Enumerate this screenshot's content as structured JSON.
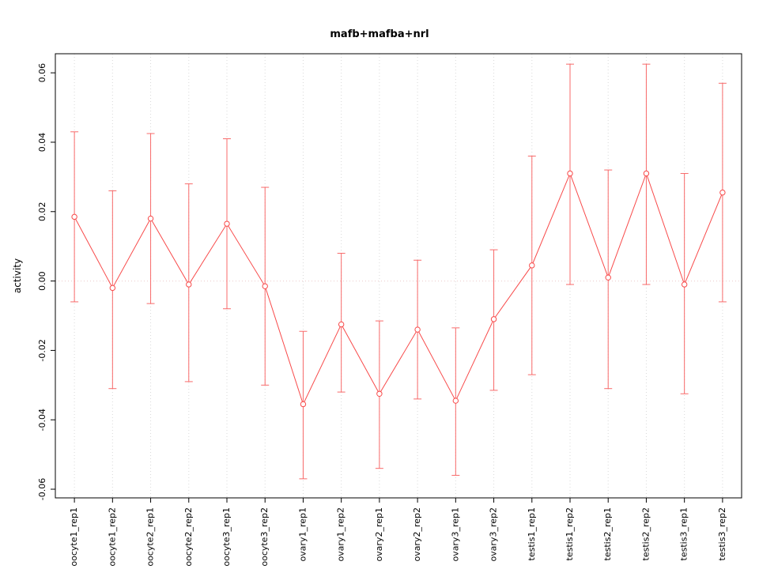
{
  "chart_data": {
    "type": "line",
    "title": "mafb+mafba+nrl",
    "ylabel": "activity",
    "xlabel": "",
    "categories": [
      "oocyte1_rep1",
      "oocyte1_rep2",
      "oocyte2_rep1",
      "oocyte2_rep2",
      "oocyte3_rep1",
      "oocyte3_rep2",
      "ovary1_rep1",
      "ovary1_rep2",
      "ovary2_rep1",
      "ovary2_rep2",
      "ovary3_rep1",
      "ovary3_rep2",
      "testis1_rep1",
      "testis1_rep2",
      "testis2_rep1",
      "testis2_rep2",
      "testis3_rep1",
      "testis3_rep2"
    ],
    "series": [
      {
        "name": "activity",
        "values": [
          0.0185,
          -0.002,
          0.018,
          -0.001,
          0.0165,
          -0.0015,
          -0.0355,
          -0.0125,
          -0.0325,
          -0.014,
          -0.0345,
          -0.011,
          0.0045,
          0.031,
          0.001,
          0.031,
          -0.001,
          0.0255
        ],
        "upper": [
          0.043,
          0.026,
          0.0425,
          0.028,
          0.041,
          0.027,
          -0.0145,
          0.008,
          -0.0115,
          0.006,
          -0.0135,
          0.009,
          0.036,
          0.0625,
          0.032,
          0.0625,
          0.031,
          0.057
        ],
        "lower": [
          -0.006,
          -0.031,
          -0.0065,
          -0.029,
          -0.008,
          -0.03,
          -0.057,
          -0.032,
          -0.054,
          -0.034,
          -0.056,
          -0.0315,
          -0.027,
          -0.001,
          -0.031,
          -0.001,
          -0.0325,
          -0.006
        ]
      }
    ],
    "ylim": [
      -0.0625,
      0.0655
    ],
    "yticks": [
      -0.06,
      -0.04,
      -0.02,
      0,
      0.02,
      0.04,
      0.06
    ],
    "ytick_labels": [
      "-0.06",
      "-0.04",
      "-0.02",
      "0.00",
      "0.02",
      "0.04",
      "0.06"
    ],
    "grid": "vertical-dotted-per-category",
    "zero_line": true,
    "legend": "none",
    "colors": {
      "series": "#f84a4a",
      "errorbar": "#f86a6a",
      "point_fill": "#ffffff",
      "grid": "#d9d9d9",
      "zero_line": "#eccaca",
      "axis_box": "#000000"
    }
  }
}
